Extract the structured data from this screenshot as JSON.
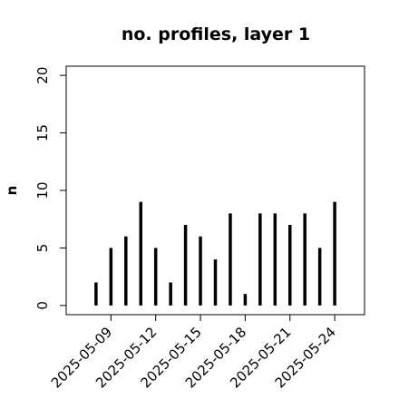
{
  "chart_data": {
    "type": "bar",
    "title": "no. profiles, layer 1",
    "y_label": "n",
    "x": [
      "2025-05-08",
      "2025-05-09",
      "2025-05-10",
      "2025-05-11",
      "2025-05-12",
      "2025-05-13",
      "2025-05-14",
      "2025-05-15",
      "2025-05-16",
      "2025-05-17",
      "2025-05-18",
      "2025-05-19",
      "2025-05-20",
      "2025-05-21",
      "2025-05-22",
      "2025-05-23",
      "2025-05-24"
    ],
    "values": [
      2,
      5,
      6,
      9,
      5,
      2,
      7,
      6,
      4,
      8,
      1,
      8,
      8,
      7,
      8,
      5,
      9
    ],
    "color": "#000000",
    "xlim": [
      "2025-05-06",
      "2025-05-26"
    ],
    "xticks": [
      "2025-05-09",
      "2025-05-12",
      "2025-05-15",
      "2025-05-18",
      "2025-05-21",
      "2025-05-24"
    ],
    "xtick_colors": [
      "#000000",
      "#000000",
      "#228b22",
      "#000000",
      "#000000",
      "#000000"
    ],
    "ylim": [
      -0.8,
      20.8
    ],
    "yticks": [
      0,
      5,
      10,
      15,
      20
    ],
    "grid": false
  }
}
